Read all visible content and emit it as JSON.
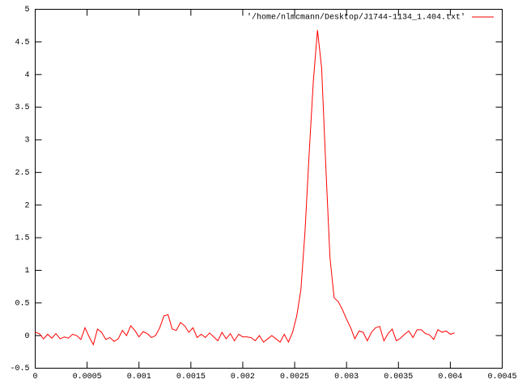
{
  "chart_data": {
    "type": "line",
    "x": [
      0,
      4e-05,
      8e-05,
      0.00012,
      0.00016,
      0.0002,
      0.00024,
      0.00028,
      0.00032,
      0.00036,
      0.0004,
      0.00044,
      0.00048,
      0.00052,
      0.00056,
      0.0006,
      0.00064,
      0.00068,
      0.00072,
      0.00076,
      0.0008,
      0.00084,
      0.00088,
      0.00092,
      0.00096,
      0.001,
      0.00104,
      0.00108,
      0.00112,
      0.00116,
      0.0012,
      0.00124,
      0.00128,
      0.00132,
      0.00136,
      0.0014,
      0.00144,
      0.00148,
      0.00152,
      0.00156,
      0.0016,
      0.00164,
      0.00168,
      0.00172,
      0.00176,
      0.0018,
      0.00184,
      0.00188,
      0.00192,
      0.00196,
      0.002,
      0.00204,
      0.00208,
      0.00212,
      0.00216,
      0.0022,
      0.00224,
      0.00228,
      0.00232,
      0.00236,
      0.0024,
      0.00244,
      0.00248,
      0.00252,
      0.00256,
      0.0026,
      0.00264,
      0.00268,
      0.00272,
      0.00276,
      0.0028,
      0.00284,
      0.00288,
      0.00292,
      0.00296,
      0.003,
      0.00304,
      0.00308,
      0.00312,
      0.00316,
      0.0032,
      0.00324,
      0.00328,
      0.00332,
      0.00336,
      0.0034,
      0.00344,
      0.00348,
      0.00352,
      0.00356,
      0.0036,
      0.00364,
      0.00368,
      0.00372,
      0.00376,
      0.0038,
      0.00384,
      0.00388,
      0.00392,
      0.00396,
      0.004,
      0.00404
    ],
    "series": [
      {
        "name": "'/home/nlmcmann/Desktop/J1744-1134_1.404.txt'",
        "color": "#ff0000",
        "values": [
          0.05,
          0.03,
          -0.05,
          0.02,
          -0.04,
          0.03,
          -0.05,
          -0.02,
          -0.04,
          0.02,
          0.0,
          -0.06,
          0.12,
          -0.02,
          -0.14,
          0.1,
          0.05,
          -0.06,
          -0.03,
          -0.09,
          -0.05,
          0.08,
          0.0,
          0.15,
          0.08,
          -0.02,
          0.06,
          0.03,
          -0.03,
          0.0,
          0.12,
          0.3,
          0.32,
          0.1,
          0.08,
          0.2,
          0.15,
          0.05,
          0.12,
          -0.03,
          0.02,
          -0.03,
          0.04,
          -0.02,
          -0.08,
          0.05,
          -0.05,
          0.03,
          -0.08,
          0.02,
          -0.02,
          -0.02,
          -0.03,
          -0.08,
          0.0,
          -0.1,
          -0.05,
          0.0,
          -0.05,
          -0.1,
          0.02,
          -0.1,
          0.05,
          0.3,
          0.7,
          1.6,
          2.8,
          3.9,
          4.68,
          4.1,
          2.6,
          1.2,
          0.58,
          0.52,
          0.4,
          0.25,
          0.12,
          -0.05,
          0.07,
          0.05,
          -0.08,
          0.05,
          0.12,
          0.14,
          -0.08,
          0.03,
          0.1,
          -0.08,
          -0.04,
          0.02,
          0.07,
          -0.03,
          0.09,
          0.09,
          0.03,
          0.01,
          -0.06,
          0.09,
          0.05,
          0.07,
          0.02,
          0.04
        ]
      }
    ],
    "xlim": [
      0,
      0.0045
    ],
    "xticks": [
      0,
      0.0005,
      0.001,
      0.0015,
      0.002,
      0.0025,
      0.003,
      0.0035,
      0.004,
      0.0045
    ],
    "ylim": [
      -0.5,
      5
    ],
    "yticks": [
      -0.5,
      0,
      0.5,
      1,
      1.5,
      2,
      2.5,
      3,
      3.5,
      4,
      4.5,
      5
    ],
    "legend": "top-right"
  }
}
